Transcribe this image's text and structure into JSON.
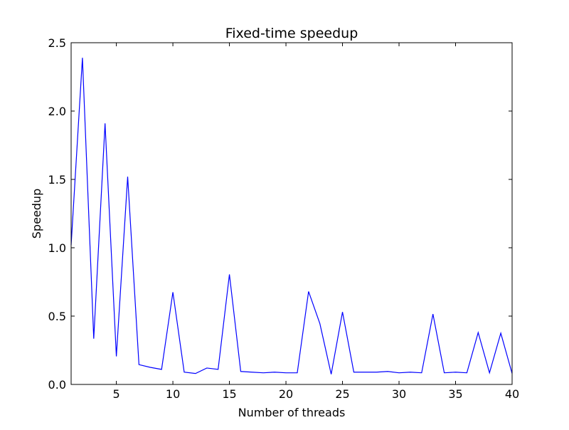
{
  "chart_data": {
    "type": "line",
    "title": "Fixed-time speedup",
    "xlabel": "Number of threads",
    "ylabel": "Speedup",
    "xlim": [
      1,
      40
    ],
    "ylim": [
      0,
      2.5
    ],
    "xticks": [
      5,
      10,
      15,
      20,
      25,
      30,
      35,
      40
    ],
    "yticks": [
      0.0,
      0.5,
      1.0,
      1.5,
      2.0,
      2.5
    ],
    "grid": false,
    "line_color": "#0000ff",
    "series": [
      {
        "x": [
          1,
          2,
          3,
          4,
          5,
          6,
          7,
          8,
          9,
          10,
          11,
          12,
          13,
          14,
          15,
          16,
          17,
          18,
          19,
          20,
          21,
          22,
          23,
          24,
          25,
          26,
          27,
          28,
          29,
          30,
          31,
          32,
          33,
          34,
          35,
          36,
          37,
          38,
          39,
          40
        ],
        "values": [
          1.02,
          2.39,
          0.335,
          1.91,
          0.205,
          1.52,
          0.145,
          0.125,
          0.11,
          0.675,
          0.09,
          0.08,
          0.12,
          0.11,
          0.805,
          0.095,
          0.09,
          0.085,
          0.09,
          0.085,
          0.085,
          0.68,
          0.445,
          0.075,
          0.53,
          0.09,
          0.09,
          0.09,
          0.095,
          0.085,
          0.09,
          0.085,
          0.515,
          0.085,
          0.09,
          0.085,
          0.38,
          0.085,
          0.375,
          0.08
        ]
      }
    ]
  }
}
